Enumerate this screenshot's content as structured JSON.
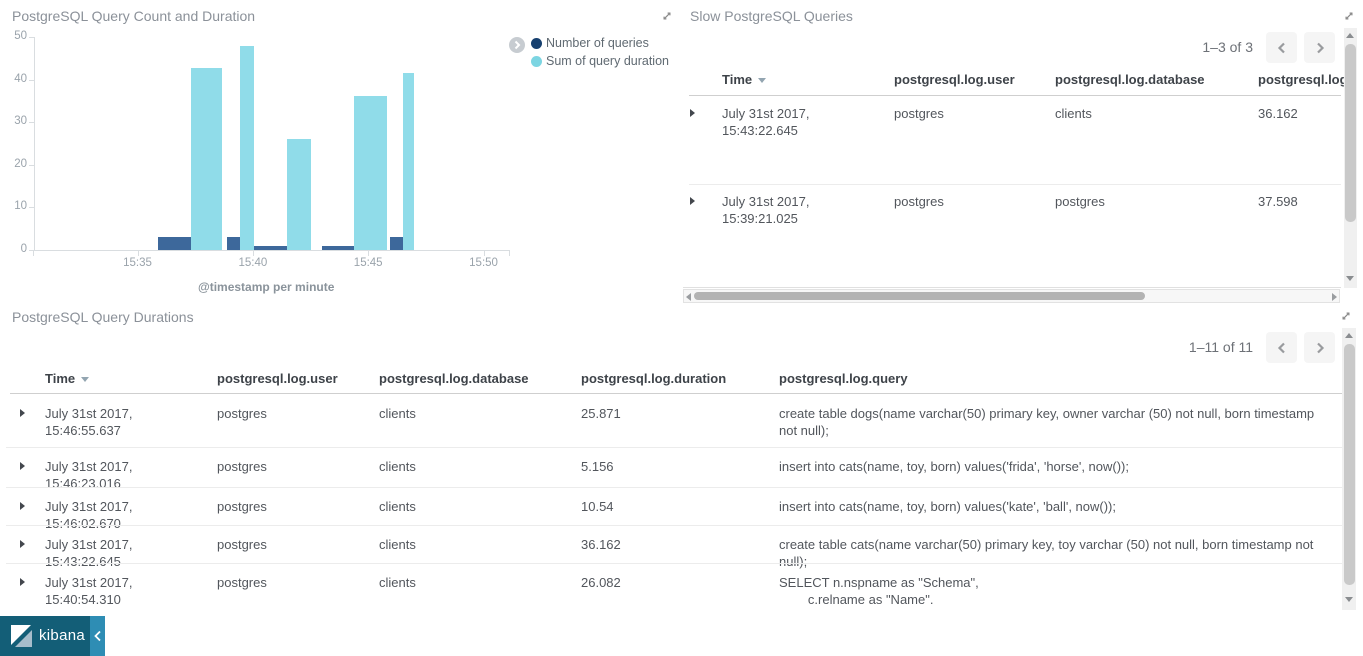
{
  "chart_data": {
    "type": "bar",
    "title": "PostgreSQL Query Count and Duration",
    "xlabel": "@timestamp per minute",
    "ylim": [
      0,
      50
    ],
    "y_ticks": [
      0,
      10,
      20,
      30,
      40,
      50
    ],
    "x_ticks": [
      {
        "t": 35,
        "label": "15:35"
      },
      {
        "t": 40,
        "label": "15:40"
      },
      {
        "t": 45,
        "label": "15:45"
      },
      {
        "t": 50,
        "label": "15:50"
      }
    ],
    "series": [
      {
        "name": "Number of queries",
        "color": "#3d689b",
        "dot_color": "#17406f"
      },
      {
        "name": "Sum of query duration",
        "color": "#90dce9",
        "dot_color": "#7cd5e2"
      }
    ],
    "bars": [
      {
        "series": 0,
        "t0": 35.9,
        "t1": 37.3,
        "value": 3
      },
      {
        "series": 1,
        "t0": 37.3,
        "t1": 38.65,
        "value": 42.7
      },
      {
        "series": 0,
        "t0": 38.9,
        "t1": 39.45,
        "value": 3
      },
      {
        "series": 1,
        "t0": 39.45,
        "t1": 40.05,
        "value": 48
      },
      {
        "series": 0,
        "t0": 40.05,
        "t1": 41.5,
        "value": 1
      },
      {
        "series": 1,
        "t0": 41.5,
        "t1": 42.5,
        "value": 26
      },
      {
        "series": 0,
        "t0": 43.0,
        "t1": 44.4,
        "value": 1
      },
      {
        "series": 1,
        "t0": 44.4,
        "t1": 45.8,
        "value": 36.2
      },
      {
        "series": 0,
        "t0": 45.95,
        "t1": 46.5,
        "value": 3
      },
      {
        "series": 1,
        "t0": 46.5,
        "t1": 47.0,
        "value": 41.5
      }
    ]
  },
  "slow_panel": {
    "title": "Slow PostgreSQL Queries",
    "pagination": "1–3 of 3",
    "columns": [
      "Time",
      "postgresql.log.user",
      "postgresql.log.database",
      "postgresql.log."
    ],
    "rows": [
      {
        "time": "July 31st 2017, 15:43:22.645",
        "user": "postgres",
        "database": "clients",
        "duration": "36.162"
      },
      {
        "time": "July 31st 2017, 15:39:21.025",
        "user": "postgres",
        "database": "postgres",
        "duration": "37.598"
      }
    ]
  },
  "durations_panel": {
    "title": "PostgreSQL Query Durations",
    "pagination": "1–11 of 11",
    "columns": [
      "Time",
      "postgresql.log.user",
      "postgresql.log.database",
      "postgresql.log.duration",
      "postgresql.log.query"
    ],
    "rows": [
      {
        "time": "July 31st 2017, 15:46:55.637",
        "user": "postgres",
        "database": "clients",
        "duration": "25.871",
        "query": "create table dogs(name varchar(50) primary key, owner varchar (50) not null, born timestamp not null);"
      },
      {
        "time": "July 31st 2017, 15:46:23.016",
        "user": "postgres",
        "database": "clients",
        "duration": "5.156",
        "query": "insert into cats(name, toy, born) values('frida', 'horse', now());"
      },
      {
        "time": "July 31st 2017, 15:46:02.670",
        "user": "postgres",
        "database": "clients",
        "duration": "10.54",
        "query": "insert into cats(name, toy, born) values('kate', 'ball', now());"
      },
      {
        "time": "July 31st 2017, 15:43:22.645",
        "user": "postgres",
        "database": "clients",
        "duration": "36.162",
        "query": "create table cats(name varchar(50) primary key, toy varchar (50) not null, born timestamp not null);"
      },
      {
        "time": "July 31st 2017, 15:40:54.310",
        "user": "postgres",
        "database": "clients",
        "duration": "26.082",
        "query": "SELECT n.nspname as \"Schema\",\n        c.relname as \"Name\"."
      }
    ]
  },
  "branding": {
    "logo_text": "kibana"
  }
}
